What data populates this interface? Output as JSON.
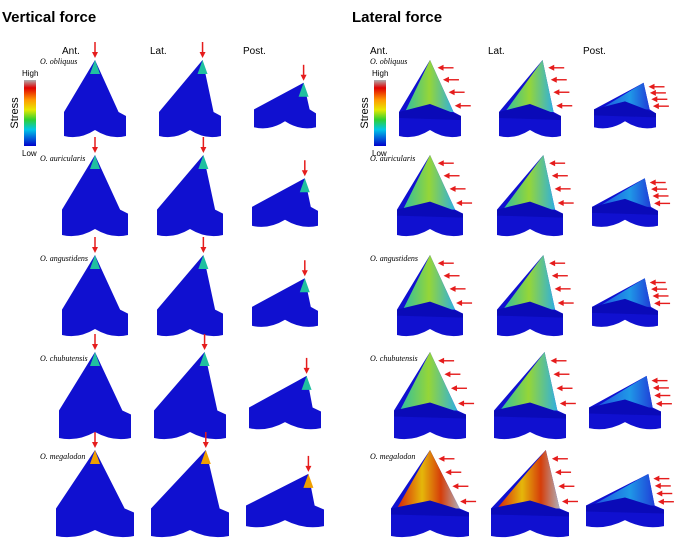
{
  "panels": [
    {
      "title": "Vertical force",
      "views": [
        "Ant.",
        "Lat.",
        "Post."
      ],
      "legend": {
        "label": "Stress",
        "high": "High",
        "low": "Low"
      },
      "species": [
        "O. obliquus",
        "O. auricularis",
        "O. angustidens",
        "O. chubutensis",
        "O. megalodon"
      ]
    },
    {
      "title": "Lateral force",
      "views": [
        "Ant.",
        "Lat.",
        "Post."
      ],
      "legend": {
        "label": "Stress",
        "high": "High",
        "low": "Low"
      },
      "species": [
        "O. obliquus",
        "O. auricularis",
        "O. angustidens",
        "O. chubutensis",
        "O. megalodon"
      ]
    }
  ]
}
